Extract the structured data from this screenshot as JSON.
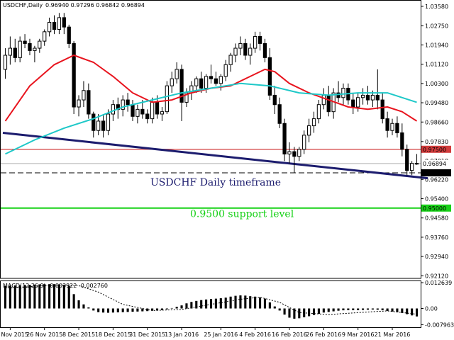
{
  "header": {
    "symbol_label": "USDCHF,Daily",
    "ohlc_label": "0.96940 0.97296 0.96842 0.96894"
  },
  "annotations": {
    "timeframe": "USDCHF Daily timeframe",
    "support": "0.9500 support level"
  },
  "macd_label": "MACD(12,26,9) -0.003922 -0.002760",
  "colors": {
    "candle": "#000000",
    "ma_red": "#e8141e",
    "ma_cyan": "#1ec8c8",
    "trend": "#1c1c6e",
    "resist": "#d23c3c",
    "support": "#17d117",
    "dash": "#000000"
  },
  "chart_data": [
    {
      "type": "candlestick",
      "name": "price",
      "y_axis_ticks": [
        "1.03580",
        "1.02750",
        "1.01940",
        "1.01120",
        "1.00300",
        "0.99480",
        "0.98660",
        "0.97830",
        "0.97010",
        "0.96220",
        "0.95400",
        "0.94580",
        "0.93760",
        "0.92940",
        "0.92120"
      ],
      "ylim": [
        0.9207,
        1.0376
      ],
      "x_ticks": [
        "16 Nov 2015",
        "26 Nov 2015",
        "8 Dec 2015",
        "18 Dec 2015",
        "31 Dec 2015",
        "13 Jan 2016",
        "25 Jan 2016",
        "4 Feb 2016",
        "16 Feb 2016",
        "26 Feb 2016",
        "9 Mar 2016",
        "21 Mar 2016"
      ],
      "candles": [
        [
          1.009,
          1.018,
          1.005,
          1.015
        ],
        [
          1.015,
          1.023,
          1.011,
          1.018
        ],
        [
          1.018,
          1.022,
          1.012,
          1.014
        ],
        [
          1.014,
          1.023,
          1.012,
          1.021
        ],
        [
          1.021,
          1.024,
          1.018,
          1.02
        ],
        [
          1.02,
          1.022,
          1.015,
          1.017
        ],
        [
          1.017,
          1.019,
          1.012,
          1.018
        ],
        [
          1.018,
          1.022,
          1.016,
          1.021
        ],
        [
          1.021,
          1.026,
          1.019,
          1.025
        ],
        [
          1.025,
          1.031,
          1.023,
          1.029
        ],
        [
          1.029,
          1.032,
          1.024,
          1.026
        ],
        [
          1.026,
          1.033,
          1.024,
          1.031
        ],
        [
          1.031,
          1.033,
          1.024,
          1.027
        ],
        [
          1.027,
          1.028,
          1.018,
          1.02
        ],
        [
          1.02,
          1.021,
          0.99,
          0.993
        ],
        [
          0.993,
          0.998,
          0.989,
          0.996
        ],
        [
          0.996,
          1.004,
          0.993,
          1.0
        ],
        [
          1.0,
          1.003,
          0.988,
          0.99
        ],
        [
          0.99,
          0.991,
          0.98,
          0.983
        ],
        [
          0.983,
          0.99,
          0.981,
          0.987
        ],
        [
          0.987,
          0.99,
          0.98,
          0.983
        ],
        [
          0.983,
          0.992,
          0.981,
          0.99
        ],
        [
          0.99,
          0.996,
          0.987,
          0.994
        ],
        [
          0.994,
          0.997,
          0.988,
          0.992
        ],
        [
          0.992,
          0.998,
          0.989,
          0.996
        ],
        [
          0.996,
          0.999,
          0.991,
          0.994
        ],
        [
          0.994,
          0.996,
          0.987,
          0.989
        ],
        [
          0.989,
          0.994,
          0.986,
          0.992
        ],
        [
          0.992,
          0.996,
          0.988,
          0.99
        ],
        [
          0.99,
          0.992,
          0.986,
          0.988
        ],
        [
          0.988,
          0.997,
          0.986,
          0.995
        ],
        [
          0.995,
          0.998,
          0.988,
          0.99
        ],
        [
          0.99,
          0.993,
          0.987,
          0.991
        ],
        [
          0.991,
          1.004,
          0.99,
          1.002
        ],
        [
          1.002,
          1.008,
          0.999,
          1.005
        ],
        [
          1.005,
          1.012,
          1.003,
          1.009
        ],
        [
          1.009,
          1.011,
          0.987,
          0.995
        ],
        [
          0.995,
          1.001,
          0.993,
          0.999
        ],
        [
          0.999,
          1.004,
          0.996,
          1.002
        ],
        [
          1.002,
          1.006,
          0.999,
          1.005
        ],
        [
          1.005,
          1.008,
          0.999,
          1.001
        ],
        [
          1.001,
          1.007,
          0.999,
          1.006
        ],
        [
          1.006,
          1.011,
          1.003,
          1.005
        ],
        [
          1.005,
          1.008,
          1.002,
          1.003
        ],
        [
          1.003,
          1.007,
          1.0,
          1.006
        ],
        [
          1.006,
          1.013,
          1.004,
          1.011
        ],
        [
          1.011,
          1.016,
          1.008,
          1.015
        ],
        [
          1.015,
          1.02,
          1.012,
          1.018
        ],
        [
          1.018,
          1.023,
          1.015,
          1.02
        ],
        [
          1.02,
          1.022,
          1.013,
          1.015
        ],
        [
          1.015,
          1.02,
          1.011,
          1.018
        ],
        [
          1.018,
          1.025,
          1.016,
          1.023
        ],
        [
          1.023,
          1.025,
          1.017,
          1.02
        ],
        [
          1.02,
          1.022,
          1.012,
          1.014
        ],
        [
          1.014,
          1.018,
          0.996,
          0.998
        ],
        [
          0.998,
          1.002,
          0.99,
          0.994
        ],
        [
          0.994,
          0.997,
          0.984,
          0.986
        ],
        [
          0.986,
          0.988,
          0.97,
          0.973
        ],
        [
          0.973,
          0.978,
          0.969,
          0.974
        ],
        [
          0.974,
          0.976,
          0.965,
          0.972
        ],
        [
          0.972,
          0.976,
          0.97,
          0.975
        ],
        [
          0.975,
          0.983,
          0.973,
          0.981
        ],
        [
          0.981,
          0.988,
          0.978,
          0.985
        ],
        [
          0.985,
          0.991,
          0.982,
          0.988
        ],
        [
          0.988,
          0.996,
          0.986,
          0.994
        ],
        [
          0.994,
          1.001,
          0.992,
          0.998
        ],
        [
          0.998,
          1.002,
          0.989,
          0.991
        ],
        [
          0.991,
          1.001,
          0.988,
          0.999
        ],
        [
          0.999,
          1.004,
          0.995,
          0.997
        ],
        [
          0.997,
          1.003,
          0.994,
          1.001
        ],
        [
          1.001,
          1.003,
          0.994,
          0.996
        ],
        [
          0.996,
          0.999,
          0.99,
          0.993
        ],
        [
          0.993,
          0.999,
          0.991,
          0.997
        ],
        [
          0.997,
          1.001,
          0.994,
          0.998
        ],
        [
          0.998,
          1.002,
          0.994,
          0.996
        ],
        [
          0.996,
          1.0,
          0.993,
          0.998
        ],
        [
          0.998,
          1.009,
          0.992,
          0.996
        ],
        [
          0.996,
          0.999,
          0.986,
          0.988
        ],
        [
          0.988,
          0.991,
          0.98,
          0.983
        ],
        [
          0.983,
          0.988,
          0.981,
          0.986
        ],
        [
          0.986,
          0.989,
          0.98,
          0.982
        ],
        [
          0.982,
          0.986,
          0.972,
          0.975
        ],
        [
          0.975,
          0.977,
          0.964,
          0.966
        ],
        [
          0.966,
          0.97,
          0.964,
          0.969
        ],
        [
          0.969,
          0.973,
          0.9684,
          0.9689
        ]
      ],
      "ma_red": [
        [
          0,
          0.987
        ],
        [
          5,
          1.002
        ],
        [
          10,
          1.011
        ],
        [
          14,
          1.015
        ],
        [
          18,
          1.012
        ],
        [
          22,
          1.006
        ],
        [
          26,
          0.999
        ],
        [
          30,
          0.995
        ],
        [
          34,
          0.996
        ],
        [
          38,
          0.999
        ],
        [
          42,
          1.001
        ],
        [
          46,
          1.002
        ],
        [
          50,
          1.006
        ],
        [
          53,
          1.009
        ],
        [
          55,
          1.008
        ],
        [
          58,
          1.003
        ],
        [
          62,
          0.999
        ],
        [
          66,
          0.996
        ],
        [
          70,
          0.993
        ],
        [
          74,
          0.992
        ],
        [
          78,
          0.993
        ],
        [
          81,
          0.991
        ],
        [
          84,
          0.987
        ]
      ],
      "ma_cyan": [
        [
          0,
          0.973
        ],
        [
          6,
          0.979
        ],
        [
          12,
          0.984
        ],
        [
          18,
          0.988
        ],
        [
          24,
          0.993
        ],
        [
          30,
          0.996
        ],
        [
          36,
          0.999
        ],
        [
          42,
          1.001
        ],
        [
          48,
          1.003
        ],
        [
          54,
          1.002
        ],
        [
          60,
          0.999
        ],
        [
          66,
          0.998
        ],
        [
          72,
          0.999
        ],
        [
          78,
          0.999
        ],
        [
          84,
          0.995
        ]
      ],
      "trend_line": [
        [
          0,
          0.982
        ],
        [
          84,
          0.9632
        ]
      ],
      "hlines": {
        "resistance": {
          "value": 0.975,
          "label": "0.97500"
        },
        "dashed": {
          "value": 0.965,
          "label": "0.96500"
        },
        "support": {
          "value": 0.95,
          "label": "0.95000"
        },
        "current": {
          "value": 0.96894,
          "label": "0.96894"
        }
      }
    },
    {
      "type": "histogram",
      "name": "MACD(12,26,9)",
      "y_axis_ticks": [
        "0.012639",
        "0.00",
        "-0.007963"
      ],
      "ylim": [
        -0.0085,
        0.013
      ],
      "bars": [
        0.011,
        0.0112,
        0.0113,
        0.0114,
        0.0115,
        0.0116,
        0.0117,
        0.0118,
        0.0119,
        0.0119,
        0.0119,
        0.0118,
        0.0115,
        0.011,
        0.007,
        0.004,
        0.002,
        0.0005,
        -0.001,
        -0.0018,
        -0.002,
        -0.0021,
        -0.002,
        -0.0019,
        -0.0018,
        -0.0017,
        -0.0016,
        -0.0015,
        -0.0014,
        -0.0013,
        -0.0011,
        -0.001,
        -0.0008,
        -0.0004,
        0.0002,
        0.0008,
        0.0015,
        0.0025,
        0.0032,
        0.0037,
        0.0041,
        0.0044,
        0.0046,
        0.0048,
        0.005,
        0.0053,
        0.0058,
        0.0062,
        0.0064,
        0.0063,
        0.006,
        0.0058,
        0.0054,
        0.0048,
        0.003,
        0.001,
        -0.001,
        -0.003,
        -0.0045,
        -0.005,
        -0.0048,
        -0.0043,
        -0.0038,
        -0.0032,
        -0.0026,
        -0.002,
        -0.0017,
        -0.0014,
        -0.0011,
        -0.0009,
        -0.0008,
        -0.0008,
        -0.0008,
        -0.0007,
        -0.0006,
        -0.0005,
        -0.0006,
        -0.0008,
        -0.0012,
        -0.0015,
        -0.0018,
        -0.0022,
        -0.0028,
        -0.0034,
        -0.0039
      ],
      "signal": [
        [
          0,
          0.01
        ],
        [
          6,
          0.0108
        ],
        [
          12,
          0.0115
        ],
        [
          15,
          0.0112
        ],
        [
          19,
          0.008
        ],
        [
          24,
          0.002
        ],
        [
          30,
          -0.001
        ],
        [
          36,
          -0.0005
        ],
        [
          42,
          0.002
        ],
        [
          48,
          0.0045
        ],
        [
          52,
          0.0055
        ],
        [
          56,
          0.003
        ],
        [
          60,
          -0.002
        ],
        [
          66,
          -0.003
        ],
        [
          72,
          -0.002
        ],
        [
          78,
          -0.0012
        ],
        [
          84,
          -0.0028
        ]
      ]
    }
  ]
}
